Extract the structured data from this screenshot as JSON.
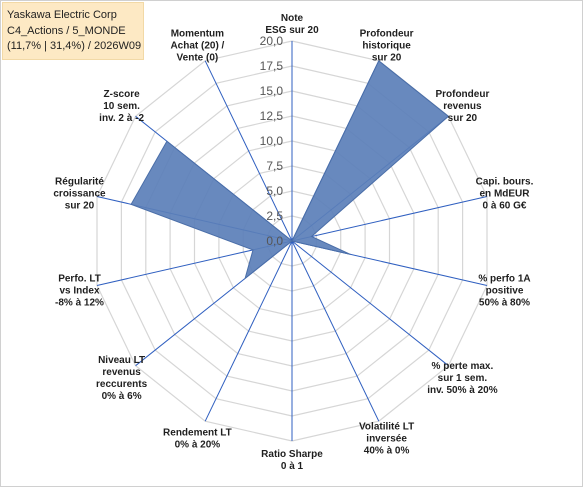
{
  "title_box": {
    "line1": "Yaskawa Electric Corp",
    "line2": "C4_Actions / 5_MONDE",
    "line3": "(11,7% | 31,4%) / 2026W09"
  },
  "chart_data": {
    "type": "radar",
    "rlim": [
      0,
      20
    ],
    "ticks": [
      "0,0",
      "2,5",
      "5,0",
      "7,5",
      "10,0",
      "12,5",
      "15,0",
      "17,5",
      "20,0"
    ],
    "tick_values": [
      0,
      2.5,
      5,
      7.5,
      10,
      12.5,
      15,
      17.5,
      20
    ],
    "grid": true,
    "fill_color": "#5b7fb8",
    "axis_color": "#2f5fc0",
    "grid_color": "#d6d6d6",
    "axes": [
      {
        "label": [
          "Note",
          "ESG sur 20"
        ],
        "value": 0
      },
      {
        "label": [
          "Profondeur",
          "historique",
          "sur 20"
        ],
        "value": 20
      },
      {
        "label": [
          "Profondeur",
          "revenus",
          "sur 20"
        ],
        "value": 20
      },
      {
        "label": [
          "Capi. bours.",
          "en MdEUR",
          "0 à 60 G€"
        ],
        "value": 2
      },
      {
        "label": [
          "% perfo 1A",
          "positive",
          "50% à 80%"
        ],
        "value": 6
      },
      {
        "label": [
          "% perte max.",
          "sur 1 sem.",
          "inv. 50% à 20%"
        ],
        "value": 0
      },
      {
        "label": [
          "Volatilité LT",
          "inversée",
          "40% à 0%"
        ],
        "value": 0
      },
      {
        "label": [
          "Ratio Sharpe",
          "0 à 1"
        ],
        "value": 0
      },
      {
        "label": [
          "Rendement LT",
          "0% à 20%"
        ],
        "value": 0
      },
      {
        "label": [
          "Niveau LT",
          "revenus",
          "reccurents",
          "0% à 6%"
        ],
        "value": 6
      },
      {
        "label": [
          "Perfo. LT",
          "vs Index",
          "-8% à 12%"
        ],
        "value": 4
      },
      {
        "label": [
          "Régularité",
          "croissance",
          "sur 20"
        ],
        "value": 16.5
      },
      {
        "label": [
          "Z-score",
          "10 sem.",
          "inv. 2 à -2"
        ],
        "value": 16
      },
      {
        "label": [
          "Momentum",
          "Achat (20) /",
          "Vente (0)"
        ],
        "value": 0
      }
    ]
  }
}
